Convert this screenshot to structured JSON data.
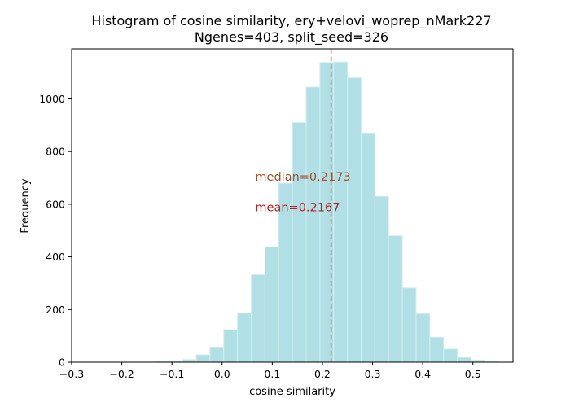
{
  "chart_data": {
    "type": "bar",
    "title": "Histogram of cosine similarity, ery+velovi_woprep_nMark227",
    "subtitle": "Ngenes=403, split_seed=326",
    "xlabel": "cosine similarity",
    "ylabel": "Frequency",
    "xlim": [
      -0.3,
      0.58
    ],
    "ylim": [
      0,
      1190
    ],
    "xticks": [
      "−0.3",
      "−0.2",
      "−0.1",
      "0.0",
      "0.1",
      "0.2",
      "0.3",
      "0.4",
      "0.5"
    ],
    "xtick_values": [
      -0.3,
      -0.2,
      -0.1,
      0.0,
      0.1,
      0.2,
      0.3,
      0.4,
      0.5
    ],
    "yticks": [
      "0",
      "200",
      "400",
      "600",
      "800",
      "1000"
    ],
    "ytick_values": [
      0,
      200,
      400,
      600,
      800,
      1000
    ],
    "bin_width": 0.02739,
    "bin_starts": [
      -0.1338,
      -0.1064,
      -0.079,
      -0.0516,
      -0.0242,
      0.0032,
      0.0306,
      0.058,
      0.0854,
      0.1128,
      0.1402,
      0.1676,
      0.195,
      0.2224,
      0.2498,
      0.2772,
      0.3046,
      0.332,
      0.3594,
      0.3868,
      0.4142,
      0.4416,
      0.469,
      0.4964,
      0.5238
    ],
    "values": [
      3,
      5,
      10,
      28,
      58,
      124,
      186,
      332,
      438,
      680,
      910,
      1045,
      1138,
      1140,
      1080,
      868,
      630,
      480,
      282,
      184,
      95,
      50,
      18,
      8,
      2
    ],
    "bar_color": "#b0e0e6",
    "bar_edge_color": "#d8ecee",
    "grid": false,
    "median": 0.2173,
    "mean": 0.2167,
    "median_line_color": "#e07b39",
    "annotations": [
      {
        "text": "median=0.2173",
        "color": "#a0522d",
        "x": 0.066,
        "y": 690
      },
      {
        "text": "mean=0.2167",
        "color": "#b22222",
        "x": 0.066,
        "y": 574
      }
    ]
  }
}
